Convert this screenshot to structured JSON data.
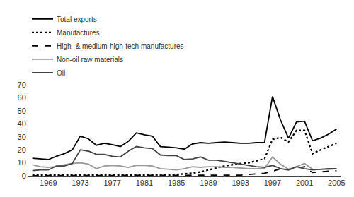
{
  "chart_data": {
    "type": "line",
    "x": [
      1967,
      1968,
      1969,
      1970,
      1971,
      1972,
      1973,
      1974,
      1975,
      1976,
      1977,
      1978,
      1979,
      1980,
      1981,
      1982,
      1983,
      1984,
      1985,
      1986,
      1987,
      1988,
      1989,
      1990,
      1991,
      1992,
      1993,
      1994,
      1995,
      1996,
      1997,
      1998,
      1999,
      2000,
      2001,
      2002,
      2003,
      2004,
      2005
    ],
    "series": [
      {
        "name": "Total exports",
        "color": "#000000",
        "line_style": "solid",
        "values": [
          13.5,
          13.0,
          12.5,
          15.0,
          17.0,
          20.0,
          30.5,
          28.5,
          23.5,
          25.0,
          24.0,
          22.5,
          26.5,
          33.0,
          31.5,
          30.5,
          22.5,
          22.0,
          21.5,
          20.5,
          24.5,
          25.5,
          25.0,
          25.5,
          26.0,
          25.5,
          25.0,
          25.0,
          25.5,
          25.5,
          61.0,
          43.0,
          29.0,
          41.5,
          42.0,
          27.0,
          29.0,
          32.0,
          36.0
        ]
      },
      {
        "name": "Manufactures",
        "color": "#000000",
        "line_style": "dotted",
        "values": [
          0.5,
          0.5,
          0.5,
          0.5,
          0.5,
          0.5,
          0.5,
          0.5,
          0.5,
          0.5,
          0.5,
          0.5,
          0.5,
          0.5,
          0.5,
          0.5,
          0.5,
          0.5,
          1.0,
          1.5,
          2.0,
          3.0,
          4.5,
          6.0,
          7.5,
          8.5,
          9.5,
          10.0,
          11.5,
          13.0,
          28.0,
          29.5,
          26.0,
          35.0,
          35.0,
          17.0,
          20.0,
          22.5,
          25.0
        ]
      },
      {
        "name": "High- & medium-high-tech manufactures",
        "color": "#000000",
        "line_style": "dashed",
        "values": [
          0.1,
          0.1,
          0.1,
          0.1,
          0.1,
          0.1,
          0.1,
          0.1,
          0.1,
          0.1,
          0.1,
          0.1,
          0.1,
          0.1,
          0.2,
          0.2,
          0.2,
          0.3,
          0.3,
          0.3,
          0.5,
          0.5,
          0.5,
          0.5,
          0.5,
          0.5,
          0.5,
          1.0,
          1.5,
          2.0,
          3.5,
          5.5,
          5.0,
          6.0,
          7.0,
          2.5,
          3.0,
          3.5,
          4.0
        ]
      },
      {
        "name": "Non-oil raw materials",
        "color": "#999999",
        "line_style": "solid",
        "values": [
          8.5,
          7.0,
          6.5,
          7.0,
          8.5,
          9.5,
          10.0,
          9.0,
          5.5,
          7.5,
          8.0,
          7.5,
          6.5,
          8.0,
          8.0,
          7.5,
          5.5,
          5.0,
          4.5,
          5.5,
          7.0,
          6.5,
          7.0,
          7.0,
          6.5,
          6.5,
          6.0,
          5.5,
          5.5,
          5.5,
          14.5,
          9.0,
          5.0,
          7.0,
          9.5,
          5.0,
          5.0,
          5.0,
          5.5
        ]
      },
      {
        "name": "Oil",
        "color": "#444444",
        "line_style": "solid",
        "values": [
          4.0,
          4.5,
          4.5,
          7.5,
          7.5,
          9.5,
          20.0,
          19.0,
          16.5,
          16.5,
          15.0,
          14.5,
          19.0,
          22.5,
          21.5,
          21.0,
          16.0,
          15.5,
          15.5,
          12.5,
          13.0,
          14.5,
          12.0,
          12.0,
          11.0,
          10.0,
          9.0,
          8.0,
          7.0,
          6.5,
          8.0,
          5.5,
          4.5,
          7.0,
          5.5,
          4.5,
          5.0,
          5.5,
          5.5
        ]
      }
    ],
    "xlim": [
      1966.5,
      2005.5
    ],
    "xticks": [
      1969,
      1973,
      1977,
      1981,
      1985,
      1989,
      1993,
      1997,
      2001,
      2005
    ],
    "ylim": [
      0,
      70
    ],
    "yticks": [
      0,
      10,
      20,
      30,
      40,
      50,
      60,
      70
    ],
    "grid": false,
    "legend": "upper left"
  }
}
